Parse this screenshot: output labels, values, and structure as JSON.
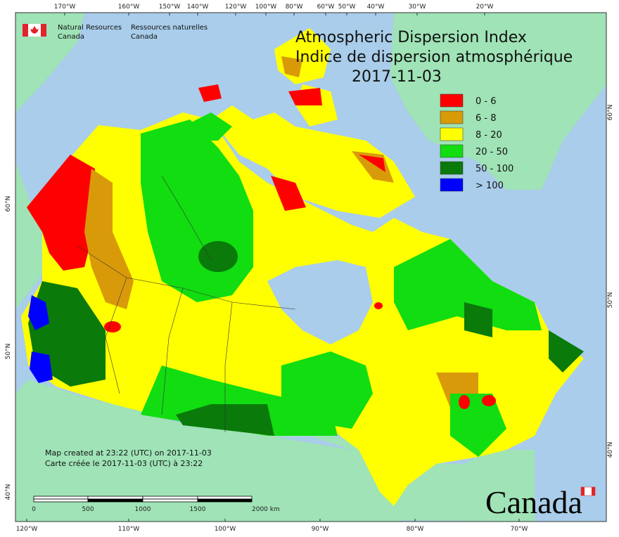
{
  "header": {
    "agency_en": "Natural Resources",
    "agency_en_2": "Canada",
    "agency_fr": "Ressources naturelles",
    "agency_fr_2": "Canada"
  },
  "title": {
    "line1": "Atmospheric Dispersion Index",
    "line2": "Indice de dispersion atmosphérique",
    "date": "2017-11-03"
  },
  "legend": [
    {
      "label": "0 - 6",
      "color": "#ff0000"
    },
    {
      "label": "6 - 8",
      "color": "#d99a0a"
    },
    {
      "label": "8 - 20",
      "color": "#ffff00"
    },
    {
      "label": "20 - 50",
      "color": "#11dd11"
    },
    {
      "label": "50 - 100",
      "color": "#0a7a0a"
    },
    {
      "label": "> 100",
      "color": "#0000ff"
    }
  ],
  "top_axis": [
    "170°W",
    "160°W",
    "150°W",
    "140°W",
    "120°W",
    "100°W",
    "80°W",
    "60°W",
    "50°W",
    "40°W",
    "30°W",
    "20°W"
  ],
  "bottom_axis": [
    "120°W",
    "110°W",
    "100°W",
    "90°W",
    "80°W",
    "70°W"
  ],
  "left_axis": [
    "60°N",
    "50°N",
    "40°N"
  ],
  "right_axis": [
    "60°N",
    "50°N",
    "40°N"
  ],
  "footer": {
    "created_en": "Map created at 23:22 (UTC) on 2017-11-03",
    "created_fr": "Carte créée le 2017-11-03 (UTC) à 23:22"
  },
  "scale_bar": {
    "labels": [
      "0",
      "500",
      "1000",
      "1500",
      "2000 km"
    ]
  },
  "wordmark": "Canada"
}
